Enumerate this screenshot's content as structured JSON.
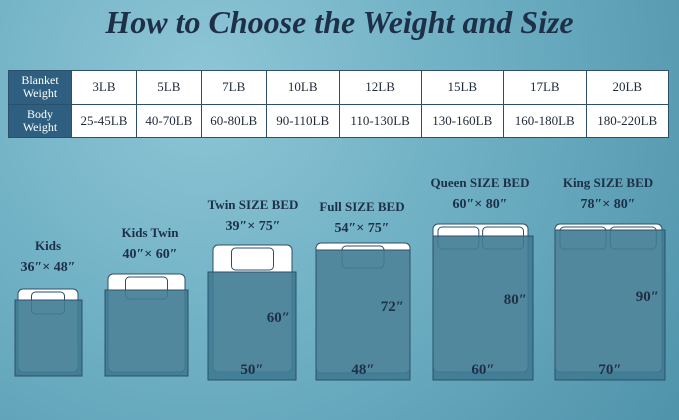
{
  "title": "How to Choose the Weight and Size",
  "table": {
    "rows": [
      [
        "Blanket Weight",
        "3LB",
        "5LB",
        "7LB",
        "10LB",
        "12LB",
        "15LB",
        "17LB",
        "20LB"
      ],
      [
        "Body Weight",
        "25-45LB",
        "40-70LB",
        "60-80LB",
        "90-110LB",
        "110-130LB",
        "130-160LB",
        "160-180LB",
        "180-220LB"
      ]
    ]
  },
  "beds": [
    {
      "name": "Kids",
      "size": "36″× 48″"
    },
    {
      "name": "Kids Twin",
      "size": "40″× 60″"
    },
    {
      "name": "Twin SIZE BED",
      "size": "39″× 75″",
      "height": "60″",
      "width": "50″"
    },
    {
      "name": "Full SIZE BED",
      "size": "54″× 75″",
      "height": "72″",
      "width": "48″"
    },
    {
      "name": "Queen SIZE BED",
      "size": "60″× 80″",
      "height": "80″",
      "width": "60″"
    },
    {
      "name": "King SIZE BED",
      "size": "78″× 80″",
      "height": "90″",
      "width": "70″"
    }
  ]
}
